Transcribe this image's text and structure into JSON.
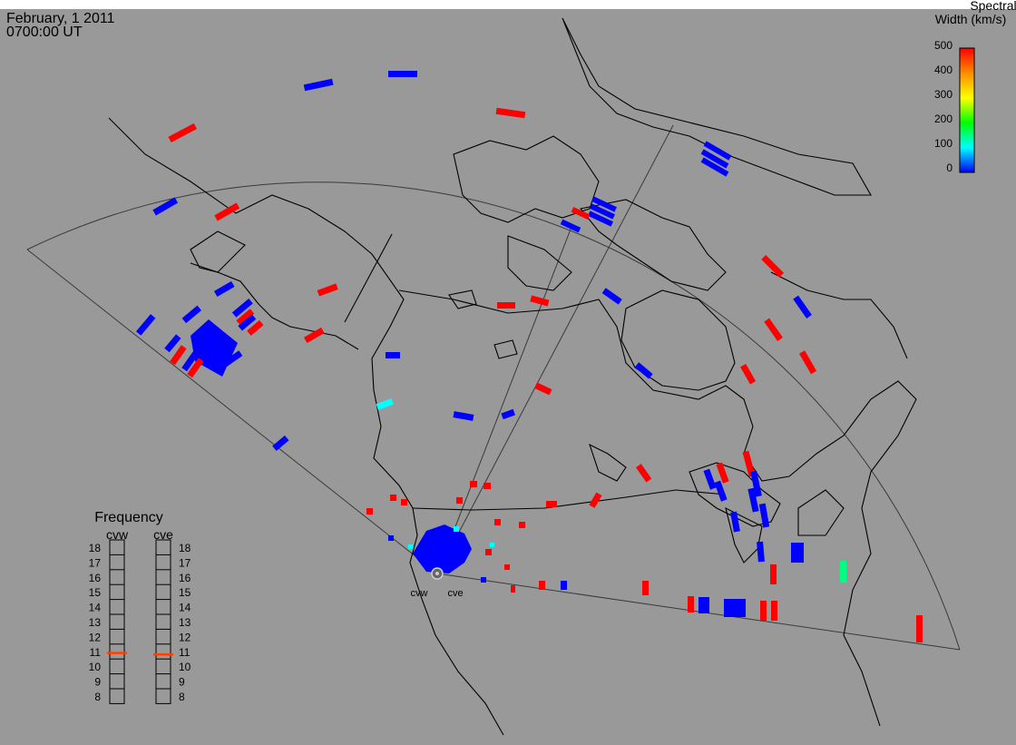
{
  "header": {
    "date": "February, 1 2011",
    "time": "0700:00 UT"
  },
  "colorbar": {
    "title_line1": "Spectral",
    "title_line2": "Width (km/s)",
    "ticks": [
      "500",
      "400",
      "300",
      "200",
      "100",
      "0"
    ],
    "range": [
      0,
      500
    ],
    "colors": [
      "#ff0000",
      "#ff8c00",
      "#ffff00",
      "#00ff00",
      "#00ffff",
      "#0000ff"
    ]
  },
  "frequency_panel": {
    "title": "Frequency",
    "radar_left": "cvw",
    "radar_right": "cve",
    "scale_ticks": [
      "18",
      "17",
      "16",
      "15",
      "14",
      "13",
      "12",
      "11",
      "10",
      "9",
      "8"
    ],
    "left_marker_mhz": 10.9,
    "right_marker_mhz": 10.8,
    "marker_color": "#ff4000"
  },
  "radar_labels": {
    "west": "cvw",
    "east": "cve"
  },
  "colors": {
    "background": "#999999",
    "map_outline": "#000000",
    "fov_outline": "#3a3a3a",
    "low_width": "#0000ff",
    "high_width": "#ff0000",
    "cyan": "#00ffff",
    "green": "#00ff80"
  }
}
